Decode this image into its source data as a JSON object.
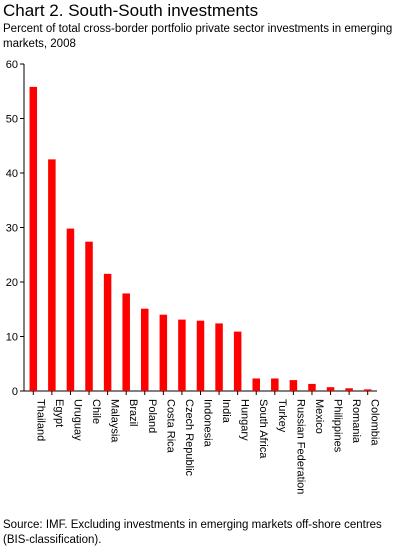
{
  "chart_data": {
    "type": "bar",
    "title": "Chart 2. South-South investments",
    "subtitle": "Percent of total cross-border portfolio private sector investments in emerging markets, 2008",
    "categories": [
      "Thailand",
      "Egypt",
      "Uruguay",
      "Chile",
      "Malaysia",
      "Brazil",
      "Poland",
      "Costa Rica",
      "Czech Republic",
      "Indonesia",
      "India",
      "Hungary",
      "South Africa",
      "Turkey",
      "Russian Federation",
      "Mexico",
      "Philippines",
      "Romania",
      "Colombia"
    ],
    "values": [
      55.8,
      42.5,
      29.8,
      27.4,
      21.5,
      17.9,
      15.1,
      14.0,
      13.1,
      12.9,
      12.4,
      10.9,
      2.3,
      2.3,
      2.0,
      1.3,
      0.7,
      0.5,
      0.3
    ],
    "ylim": [
      0,
      60
    ],
    "yticks": [
      0,
      10,
      20,
      30,
      40,
      50,
      60
    ],
    "xlabel": "",
    "ylabel": "",
    "bar_color": "#ff0000",
    "grid": false,
    "legend": "none"
  },
  "source": "Source: IMF. Excluding investments in emerging markets off-shore centres (BIS-classification)."
}
